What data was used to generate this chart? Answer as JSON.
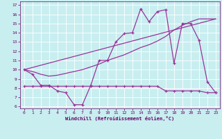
{
  "xlabel": "Windchill (Refroidissement éolien,°C)",
  "bg_color": "#c8eef0",
  "line_color": "#993399",
  "grid_color": "#ffffff",
  "xlim": [
    -0.5,
    23.5
  ],
  "ylim": [
    5.8,
    17.4
  ],
  "yticks": [
    6,
    7,
    8,
    9,
    10,
    11,
    12,
    13,
    14,
    15,
    16,
    17
  ],
  "xticks": [
    0,
    1,
    2,
    3,
    4,
    5,
    6,
    7,
    8,
    9,
    10,
    11,
    12,
    13,
    14,
    15,
    16,
    17,
    18,
    19,
    20,
    21,
    22,
    23
  ],
  "line1_x": [
    0,
    1,
    2,
    3,
    4,
    5,
    6,
    7,
    8,
    9,
    10,
    11,
    12,
    13,
    14,
    15,
    16,
    17,
    18,
    19,
    20,
    21,
    22,
    23
  ],
  "line1_y": [
    10.0,
    9.5,
    8.3,
    8.3,
    7.7,
    7.5,
    6.2,
    6.2,
    8.3,
    11.0,
    11.0,
    13.0,
    13.9,
    14.0,
    16.6,
    15.2,
    16.3,
    16.5,
    10.7,
    15.0,
    15.0,
    13.2,
    8.7,
    7.5
  ],
  "line2_x": [
    0,
    1,
    2,
    3,
    4,
    5,
    6,
    7,
    8,
    9,
    10,
    11,
    12,
    13,
    14,
    15,
    16,
    17,
    18,
    19,
    20,
    21,
    22,
    23
  ],
  "line2_y": [
    10.0,
    9.8,
    9.5,
    9.3,
    9.4,
    9.6,
    9.8,
    10.0,
    10.3,
    10.6,
    11.0,
    11.3,
    11.6,
    12.0,
    12.4,
    12.7,
    13.1,
    13.6,
    14.3,
    14.8,
    15.2,
    15.5,
    15.5,
    15.5
  ],
  "line3_x": [
    0,
    23
  ],
  "line3_y": [
    10.0,
    15.5
  ],
  "line4_x": [
    0,
    1,
    2,
    3,
    4,
    5,
    6,
    7,
    8,
    9,
    10,
    11,
    12,
    13,
    14,
    15,
    16,
    17,
    18,
    19,
    20,
    21,
    22,
    23
  ],
  "line4_y": [
    8.2,
    8.2,
    8.2,
    8.2,
    8.2,
    8.2,
    8.2,
    8.2,
    8.2,
    8.2,
    8.2,
    8.2,
    8.2,
    8.2,
    8.2,
    8.2,
    8.2,
    7.7,
    7.7,
    7.7,
    7.7,
    7.7,
    7.5,
    7.5
  ]
}
